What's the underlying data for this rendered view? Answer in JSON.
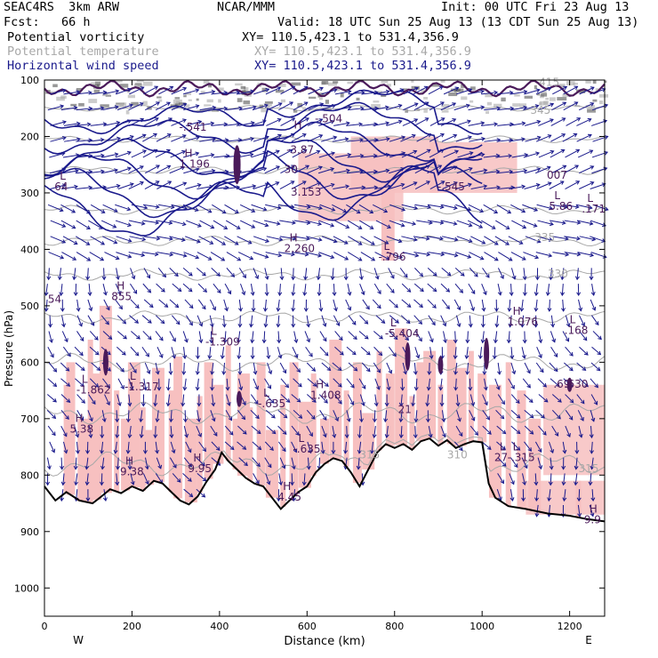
{
  "header": {
    "model": "SEAC4RS  3km ARW",
    "org": "NCAR/MMM",
    "init": "Init: 00 UTC Fri 23 Aug 13",
    "fcst": "Fcst:   66 h",
    "valid": "Valid: 18 UTC Sun 25 Aug 13 (13 CDT Sun 25 Aug 13)"
  },
  "fields": [
    {
      "name": "Potential vorticity",
      "xy": "XY= 110.5,423.1 to 531.4,356.9",
      "color": "#000000"
    },
    {
      "name": "Potential temperature",
      "xy": "XY= 110.5,423.1 to 531.4,356.9",
      "color": "#a8a8a8"
    },
    {
      "name": "Horizontal wind speed",
      "xy": "XY= 110.5,423.1 to 531.4,356.9",
      "color": "#1a1a8c"
    }
  ],
  "chart_data": {
    "type": "cross-section",
    "xlabel": "Distance (km)",
    "ylabel": "Pressure (hPa)",
    "xlim": [
      0,
      1280
    ],
    "ylim": [
      1050,
      100
    ],
    "x_ticks": [
      "0",
      "200",
      "400",
      "600",
      "800",
      "1000",
      "1200"
    ],
    "y_ticks": [
      "100",
      "200",
      "300",
      "400",
      "500",
      "600",
      "700",
      "800",
      "900",
      "1000"
    ],
    "endpoint_west": "W",
    "endpoint_east": "E",
    "colors": {
      "pv_fill": "#f7c0c0",
      "theta": "#a8a8a8",
      "wind": "#1a1a8c",
      "terrain": "#000000",
      "extrema": "#4a1a5a"
    },
    "theta_labels": [
      {
        "x": 1130,
        "p": 110,
        "text": "415"
      },
      {
        "x": 1110,
        "p": 160,
        "text": "345"
      },
      {
        "x": 1120,
        "p": 385,
        "text": "335"
      },
      {
        "x": 1150,
        "p": 450,
        "text": "330"
      },
      {
        "x": 720,
        "p": 770,
        "text": "315"
      },
      {
        "x": 920,
        "p": 770,
        "text": "310"
      },
      {
        "x": 1220,
        "p": 795,
        "text": "315"
      }
    ],
    "extrema_labels": [
      {
        "x": 165,
        "p": 490,
        "type": "H",
        "value": "855"
      },
      {
        "x": 85,
        "p": 655,
        "type": "L",
        "value": "-1.862"
      },
      {
        "x": 70,
        "p": 725,
        "type": "H",
        "value": "5.38"
      },
      {
        "x": 195,
        "p": 650,
        "type": "L",
        "value": "-1.317"
      },
      {
        "x": 185,
        "p": 800,
        "type": "H",
        "value": "9.38"
      },
      {
        "x": 380,
        "p": 570,
        "type": "L",
        "value": "-1.309"
      },
      {
        "x": 340,
        "p": 795,
        "type": "H",
        "value": "9.95"
      },
      {
        "x": 500,
        "p": 680,
        "type": "L",
        "value": "-.635"
      },
      {
        "x": 580,
        "p": 760,
        "type": "L",
        "value": "-.635"
      },
      {
        "x": 620,
        "p": 665,
        "type": "H",
        "value": "1.408"
      },
      {
        "x": 545,
        "p": 845,
        "type": "H",
        "value": "4.45"
      },
      {
        "x": 790,
        "p": 555,
        "type": "L",
        "value": "-5.404"
      },
      {
        "x": 820,
        "p": 690,
        "type": "",
        "value": "21"
      },
      {
        "x": 1040,
        "p": 775,
        "type": "L",
        "value": "27"
      },
      {
        "x": 1070,
        "p": 775,
        "type": "L",
        "value": "-.315"
      },
      {
        "x": 1070,
        "p": 535,
        "type": "H",
        "value": "1.076"
      },
      {
        "x": 1200,
        "p": 550,
        "type": "L",
        "value": ".168"
      },
      {
        "x": 1200,
        "p": 645,
        "type": "",
        "value": ".630"
      },
      {
        "x": 1175,
        "p": 645,
        "type": "",
        "value": ".69"
      },
      {
        "x": 1245,
        "p": 885,
        "type": "H",
        "value": "9.9"
      },
      {
        "x": 20,
        "p": 495,
        "type": "",
        "value": "54"
      },
      {
        "x": 35,
        "p": 295,
        "type": "L",
        "value": "64"
      },
      {
        "x": 320,
        "p": 255,
        "type": "H",
        "value": "1.196"
      },
      {
        "x": 565,
        "p": 230,
        "type": "",
        "value": "-3.87"
      },
      {
        "x": 560,
        "p": 265,
        "type": "",
        "value": "30"
      },
      {
        "x": 575,
        "p": 305,
        "type": "",
        "value": "3.153"
      },
      {
        "x": 560,
        "p": 405,
        "type": "H",
        "value": "2.260"
      },
      {
        "x": 775,
        "p": 420,
        "type": "L",
        "value": "-.796"
      },
      {
        "x": 910,
        "p": 295,
        "type": "",
        "value": "-.545"
      },
      {
        "x": 1160,
        "p": 275,
        "type": "",
        "value": "007"
      },
      {
        "x": 1165,
        "p": 330,
        "type": "L",
        "value": "5.86"
      },
      {
        "x": 1240,
        "p": 335,
        "type": "L",
        "value": ".171"
      },
      {
        "x": 570,
        "p": 205,
        "type": "H",
        "value": ""
      },
      {
        "x": 320,
        "p": 190,
        "type": "",
        "value": "-.541"
      },
      {
        "x": 630,
        "p": 175,
        "type": "",
        "value": "-.504"
      }
    ]
  }
}
